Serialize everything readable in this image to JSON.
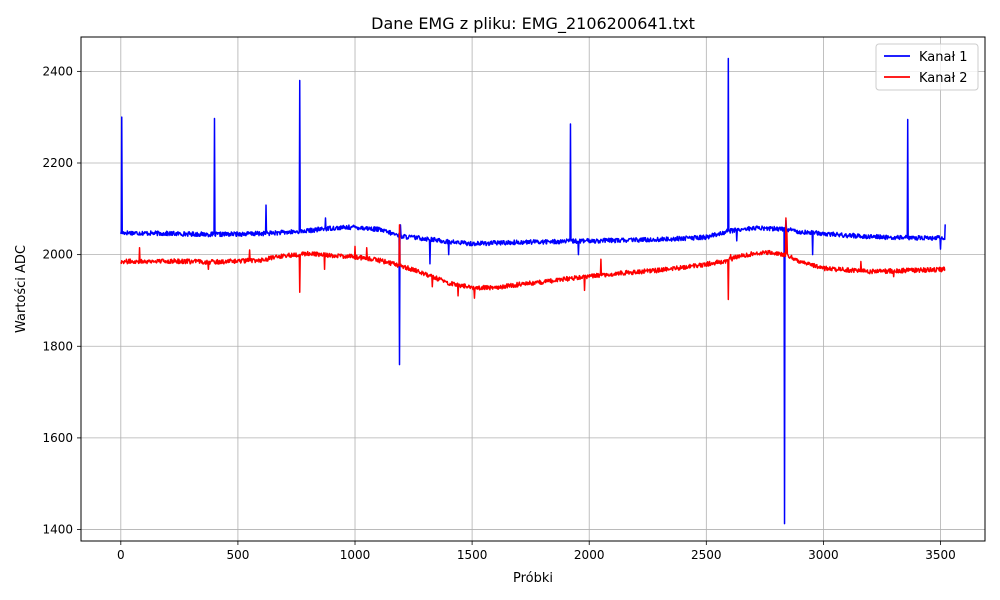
{
  "chart_data": {
    "type": "line",
    "title": "Dane EMG z pliku: EMG_2106200641.txt",
    "xlabel": "Próbki",
    "ylabel": "Wartości ADC",
    "xlim": [
      -170,
      3690
    ],
    "ylim": [
      1375,
      2475
    ],
    "xticks": [
      0,
      500,
      1000,
      1500,
      2000,
      2500,
      3000,
      3500
    ],
    "yticks": [
      1400,
      1600,
      1800,
      2000,
      2200,
      2400
    ],
    "grid": true,
    "legend_position": "top-right",
    "series": [
      {
        "name": "Kanał 1",
        "color": "#0000ff",
        "baseline": [
          [
            0,
            2048
          ],
          [
            200,
            2046
          ],
          [
            400,
            2044
          ],
          [
            600,
            2046
          ],
          [
            760,
            2050
          ],
          [
            900,
            2058
          ],
          [
            1000,
            2060
          ],
          [
            1100,
            2055
          ],
          [
            1200,
            2040
          ],
          [
            1300,
            2035
          ],
          [
            1400,
            2028
          ],
          [
            1500,
            2024
          ],
          [
            1700,
            2027
          ],
          [
            1900,
            2029
          ],
          [
            2100,
            2031
          ],
          [
            2300,
            2033
          ],
          [
            2500,
            2038
          ],
          [
            2600,
            2052
          ],
          [
            2700,
            2058
          ],
          [
            2840,
            2056
          ],
          [
            2900,
            2050
          ],
          [
            3100,
            2042
          ],
          [
            3300,
            2037
          ],
          [
            3520,
            2036
          ]
        ],
        "noise": 5,
        "spikes": [
          [
            5,
            2300
          ],
          [
            400,
            2297
          ],
          [
            620,
            2108
          ],
          [
            765,
            2380
          ],
          [
            875,
            2080
          ],
          [
            1190,
            1760
          ],
          [
            1195,
            2065
          ],
          [
            1320,
            1980
          ],
          [
            1400,
            2000
          ],
          [
            1920,
            2285
          ],
          [
            1955,
            2000
          ],
          [
            2595,
            2428
          ],
          [
            2630,
            2030
          ],
          [
            2835,
            1413
          ],
          [
            2840,
            2075
          ],
          [
            2955,
            2000
          ],
          [
            3360,
            2295
          ],
          [
            3500,
            2012
          ],
          [
            3520,
            2066
          ]
        ]
      },
      {
        "name": "Kanał 2",
        "color": "#ff0000",
        "baseline": [
          [
            0,
            1985
          ],
          [
            200,
            1986
          ],
          [
            400,
            1984
          ],
          [
            600,
            1988
          ],
          [
            700,
            1998
          ],
          [
            800,
            2002
          ],
          [
            1000,
            1995
          ],
          [
            1100,
            1988
          ],
          [
            1200,
            1975
          ],
          [
            1300,
            1958
          ],
          [
            1400,
            1938
          ],
          [
            1500,
            1928
          ],
          [
            1600,
            1928
          ],
          [
            1700,
            1935
          ],
          [
            1800,
            1940
          ],
          [
            1950,
            1950
          ],
          [
            2100,
            1958
          ],
          [
            2300,
            1966
          ],
          [
            2450,
            1975
          ],
          [
            2580,
            1986
          ],
          [
            2650,
            1998
          ],
          [
            2750,
            2006
          ],
          [
            2800,
            2002
          ],
          [
            2840,
            2000
          ],
          [
            2900,
            1985
          ],
          [
            3000,
            1970
          ],
          [
            3200,
            1963
          ],
          [
            3400,
            1966
          ],
          [
            3520,
            1968
          ]
        ],
        "noise": 5,
        "spikes": [
          [
            80,
            2015
          ],
          [
            375,
            1968
          ],
          [
            550,
            2010
          ],
          [
            765,
            1918
          ],
          [
            870,
            1968
          ],
          [
            1000,
            2018
          ],
          [
            1050,
            2015
          ],
          [
            1190,
            2065
          ],
          [
            1330,
            1930
          ],
          [
            1440,
            1910
          ],
          [
            1510,
            1905
          ],
          [
            1980,
            1922
          ],
          [
            2050,
            1990
          ],
          [
            2595,
            1902
          ],
          [
            2605,
            2000
          ],
          [
            2840,
            2080
          ],
          [
            2845,
            2050
          ],
          [
            3160,
            1985
          ],
          [
            3300,
            1952
          ]
        ]
      }
    ]
  }
}
